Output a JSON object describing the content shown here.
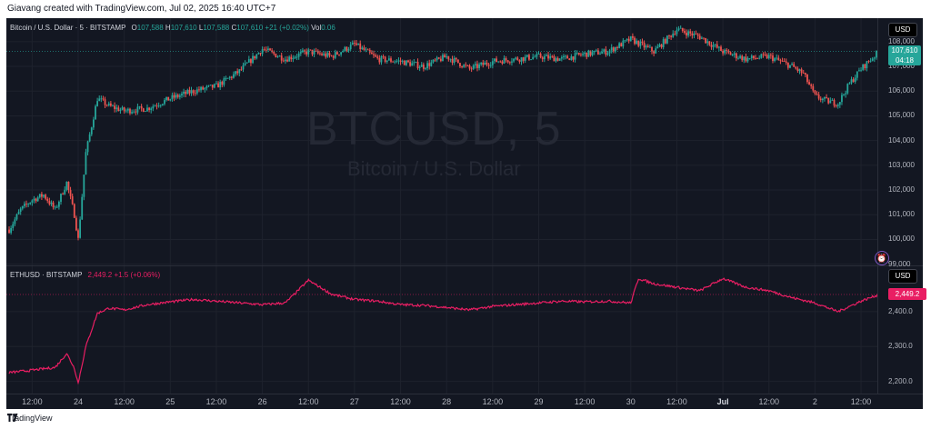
{
  "header": {
    "text": "Giavang created with TradingView.com, Jul 02, 2025 16:40 UTC+7"
  },
  "main_pane": {
    "symbol": "Bitcoin / U.S. Dollar · 5 · BITSTAMP",
    "o_label": "O",
    "o": "107,588",
    "h_label": "H",
    "h": "107,610",
    "l_label": "L",
    "l": "107,588",
    "c_label": "C",
    "c": "107,610",
    "change": "+21 (+0.02%)",
    "vol_label": "Vol",
    "vol": "0.06",
    "watermark_ticker": "BTCUSD, 5",
    "watermark_name": "Bitcoin / U.S. Dollar",
    "currency_button": "USD",
    "last_price": "107,610",
    "countdown": "04:18",
    "y_ticks": [
      "108,000",
      "107,000",
      "106,000",
      "105,000",
      "104,000",
      "103,000",
      "102,000",
      "101,000",
      "100,000",
      "99,000"
    ],
    "y_range": [
      98950,
      108950
    ],
    "up_color": "#26a69a",
    "down_color": "#ef5350",
    "alert_icon": "alert-clock-icon"
  },
  "eth_pane": {
    "symbol": "ETHUSD · BITSTAMP",
    "price": "2,449.2",
    "change": "+1.5 (+0.06%)",
    "currency_button": "USD",
    "last_price": "2,449.2",
    "y_ticks": [
      "2,400.0",
      "2,300.0",
      "2,200.0"
    ],
    "y_range": [
      2165,
      2530
    ],
    "line_color": "#e91e63"
  },
  "x_axis": {
    "labels": [
      "12:00",
      "24",
      "12:00",
      "25",
      "12:00",
      "26",
      "12:00",
      "27",
      "12:00",
      "28",
      "12:00",
      "29",
      "12:00",
      "30",
      "12:00",
      "Jul",
      "12:00",
      "2",
      "12:00"
    ],
    "bold_labels": [
      "Jul"
    ]
  },
  "chart_data": [
    {
      "type": "candlestick",
      "title": "Bitcoin / U.S. Dollar · 5 · BITSTAMP",
      "ylim": [
        98950,
        108950
      ],
      "x_range": [
        "Jun 23 06:00",
        "Jul 2 16:40"
      ],
      "close_path": [
        [
          "Jun 23 06:00",
          100400
        ],
        [
          "Jun 23 09:00",
          101200
        ],
        [
          "Jun 23 12:00",
          101600
        ],
        [
          "Jun 23 15:00",
          101800
        ],
        [
          "Jun 23 18:00",
          101200
        ],
        [
          "Jun 23 21:00",
          102300
        ],
        [
          "Jun 23 23:00",
          101000
        ],
        [
          "Jun 24 00:00",
          100000
        ],
        [
          "Jun 24 02:00",
          103500
        ],
        [
          "Jun 24 05:00",
          105700
        ],
        [
          "Jun 24 08:00",
          105400
        ],
        [
          "Jun 24 12:00",
          105200
        ],
        [
          "Jun 24 18:00",
          105300
        ],
        [
          "Jun 25 00:00",
          105700
        ],
        [
          "Jun 25 06:00",
          106000
        ],
        [
          "Jun 25 12:00",
          106200
        ],
        [
          "Jun 25 18:00",
          106800
        ],
        [
          "Jun 26 00:00",
          107700
        ],
        [
          "Jun 26 06:00",
          107300
        ],
        [
          "Jun 26 12:00",
          107600
        ],
        [
          "Jun 26 18:00",
          107400
        ],
        [
          "Jun 27 00:00",
          107900
        ],
        [
          "Jun 27 06:00",
          107300
        ],
        [
          "Jun 27 12:00",
          107200
        ],
        [
          "Jun 27 18:00",
          107000
        ],
        [
          "Jun 28 00:00",
          107400
        ],
        [
          "Jun 28 06:00",
          106900
        ],
        [
          "Jun 28 12:00",
          107200
        ],
        [
          "Jun 28 18:00",
          107300
        ],
        [
          "Jun 29 00:00",
          107400
        ],
        [
          "Jun 29 06:00",
          107300
        ],
        [
          "Jun 29 12:00",
          107500
        ],
        [
          "Jun 29 18:00",
          107600
        ],
        [
          "Jun 30 00:00",
          108100
        ],
        [
          "Jun 30 06:00",
          107600
        ],
        [
          "Jun 30 12:00",
          108500
        ],
        [
          "Jun 30 18:00",
          108200
        ],
        [
          "Jul 1 00:00",
          107600
        ],
        [
          "Jul 1 06:00",
          107300
        ],
        [
          "Jul 1 12:00",
          107400
        ],
        [
          "Jul 1 18:00",
          107000
        ],
        [
          "Jul 1 21:00",
          106700
        ],
        [
          "Jul 2 00:00",
          105800
        ],
        [
          "Jul 2 03:00",
          105600
        ],
        [
          "Jul 2 06:00",
          105500
        ],
        [
          "Jul 2 09:00",
          106300
        ],
        [
          "Jul 2 12:00",
          106900
        ],
        [
          "Jul 2 16:40",
          107610
        ]
      ]
    },
    {
      "type": "line",
      "title": "ETHUSD · BITSTAMP",
      "ylim": [
        2165,
        2530
      ],
      "x_range": [
        "Jun 23 06:00",
        "Jul 2 16:40"
      ],
      "series": [
        {
          "points": [
            [
              "Jun 23 06:00",
              2225
            ],
            [
              "Jun 23 12:00",
              2232
            ],
            [
              "Jun 23 18:00",
              2240
            ],
            [
              "Jun 23 21:00",
              2280
            ],
            [
              "Jun 23 23:00",
              2238
            ],
            [
              "Jun 24 00:00",
              2195
            ],
            [
              "Jun 24 02:00",
              2300
            ],
            [
              "Jun 24 05:00",
              2395
            ],
            [
              "Jun 24 08:00",
              2410
            ],
            [
              "Jun 24 12:00",
              2405
            ],
            [
              "Jun 24 18:00",
              2420
            ],
            [
              "Jun 25 00:00",
              2428
            ],
            [
              "Jun 25 06:00",
              2435
            ],
            [
              "Jun 25 12:00",
              2430
            ],
            [
              "Jun 25 18:00",
              2425
            ],
            [
              "Jun 26 00:00",
              2420
            ],
            [
              "Jun 26 06:00",
              2425
            ],
            [
              "Jun 26 12:00",
              2490
            ],
            [
              "Jun 26 18:00",
              2450
            ],
            [
              "Jun 27 00:00",
              2435
            ],
            [
              "Jun 27 06:00",
              2430
            ],
            [
              "Jun 27 12:00",
              2420
            ],
            [
              "Jun 27 18:00",
              2418
            ],
            [
              "Jun 28 00:00",
              2412
            ],
            [
              "Jun 28 06:00",
              2405
            ],
            [
              "Jun 28 12:00",
              2415
            ],
            [
              "Jun 28 18:00",
              2420
            ],
            [
              "Jun 29 00:00",
              2425
            ],
            [
              "Jun 29 06:00",
              2430
            ],
            [
              "Jun 29 12:00",
              2428
            ],
            [
              "Jun 29 18:00",
              2430
            ],
            [
              "Jun 30 00:00",
              2425
            ],
            [
              "Jun 30 02:00",
              2495
            ],
            [
              "Jun 30 06:00",
              2480
            ],
            [
              "Jun 30 12:00",
              2470
            ],
            [
              "Jun 30 18:00",
              2460
            ],
            [
              "Jul 1 00:00",
              2495
            ],
            [
              "Jul 1 06:00",
              2470
            ],
            [
              "Jul 1 12:00",
              2460
            ],
            [
              "Jul 1 18:00",
              2440
            ],
            [
              "Jul 2 00:00",
              2425
            ],
            [
              "Jul 2 06:00",
              2400
            ],
            [
              "Jul 2 12:00",
              2430
            ],
            [
              "Jul 2 16:40",
              2449.2
            ]
          ]
        }
      ]
    }
  ],
  "footer": {
    "brand": "TradingView",
    "logo_icon": "tradingview-logo-icon"
  }
}
